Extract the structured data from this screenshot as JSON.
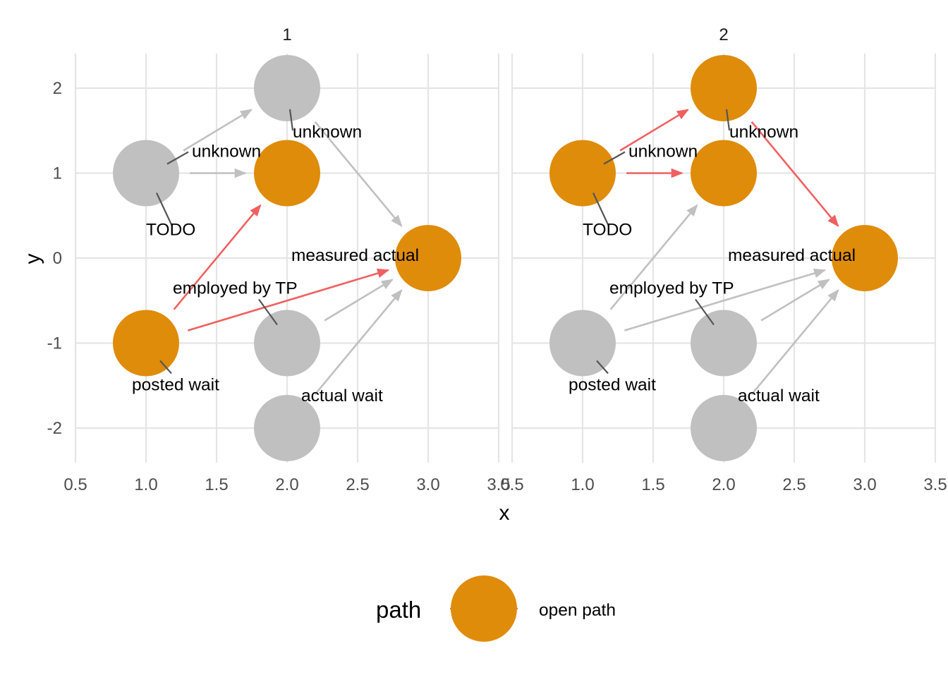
{
  "colors": {
    "open_node": "#df8c0a",
    "other_node": "#c0c0c0",
    "open_edge": "#f06060",
    "other_edge": "#c0c0c0"
  },
  "axes": {
    "x_title": "x",
    "y_title": "y",
    "x_ticks": [
      0.5,
      1.0,
      1.5,
      2.0,
      2.5,
      3.0,
      3.5
    ],
    "x_tick_labels": [
      "0.5",
      "1.0",
      "1.5",
      "2.0",
      "2.5",
      "3.0",
      "3.5"
    ],
    "y_ticks": [
      2,
      1,
      0,
      -1,
      -2
    ],
    "y_tick_labels": [
      "2",
      "1",
      "0",
      "-1",
      "-2"
    ],
    "xlim": [
      0.5,
      3.5
    ],
    "ylim": [
      -2.4,
      2.4
    ]
  },
  "legend": {
    "title": "path",
    "label": "open path"
  },
  "chart_data": {
    "type": "dag",
    "nodes": [
      {
        "id": "todo",
        "x": 1,
        "y": 1,
        "label": "TODO"
      },
      {
        "id": "unknown_top",
        "x": 2,
        "y": 2,
        "label": "unknown"
      },
      {
        "id": "unknown_mid",
        "x": 2,
        "y": 1,
        "label": "unknown"
      },
      {
        "id": "measured_actual",
        "x": 3,
        "y": 0,
        "label": "measured actual"
      },
      {
        "id": "posted_wait",
        "x": 1,
        "y": -1,
        "label": "posted wait"
      },
      {
        "id": "employed_tp",
        "x": 2,
        "y": -1,
        "label": "employed by TP"
      },
      {
        "id": "actual_wait",
        "x": 2,
        "y": -2,
        "label": "actual wait"
      }
    ],
    "edges": [
      {
        "from": "todo",
        "to": "unknown_top"
      },
      {
        "from": "todo",
        "to": "unknown_mid"
      },
      {
        "from": "unknown_top",
        "to": "measured_actual"
      },
      {
        "from": "posted_wait",
        "to": "unknown_mid"
      },
      {
        "from": "posted_wait",
        "to": "measured_actual"
      },
      {
        "from": "employed_tp",
        "to": "measured_actual"
      },
      {
        "from": "actual_wait",
        "to": "measured_actual"
      }
    ],
    "panels": [
      {
        "title": "1",
        "open_nodes": [
          "unknown_mid",
          "measured_actual",
          "posted_wait"
        ],
        "open_edges": [
          3,
          4
        ]
      },
      {
        "title": "2",
        "open_nodes": [
          "todo",
          "unknown_top",
          "unknown_mid",
          "measured_actual"
        ],
        "open_edges": [
          0,
          1,
          2
        ]
      }
    ]
  }
}
